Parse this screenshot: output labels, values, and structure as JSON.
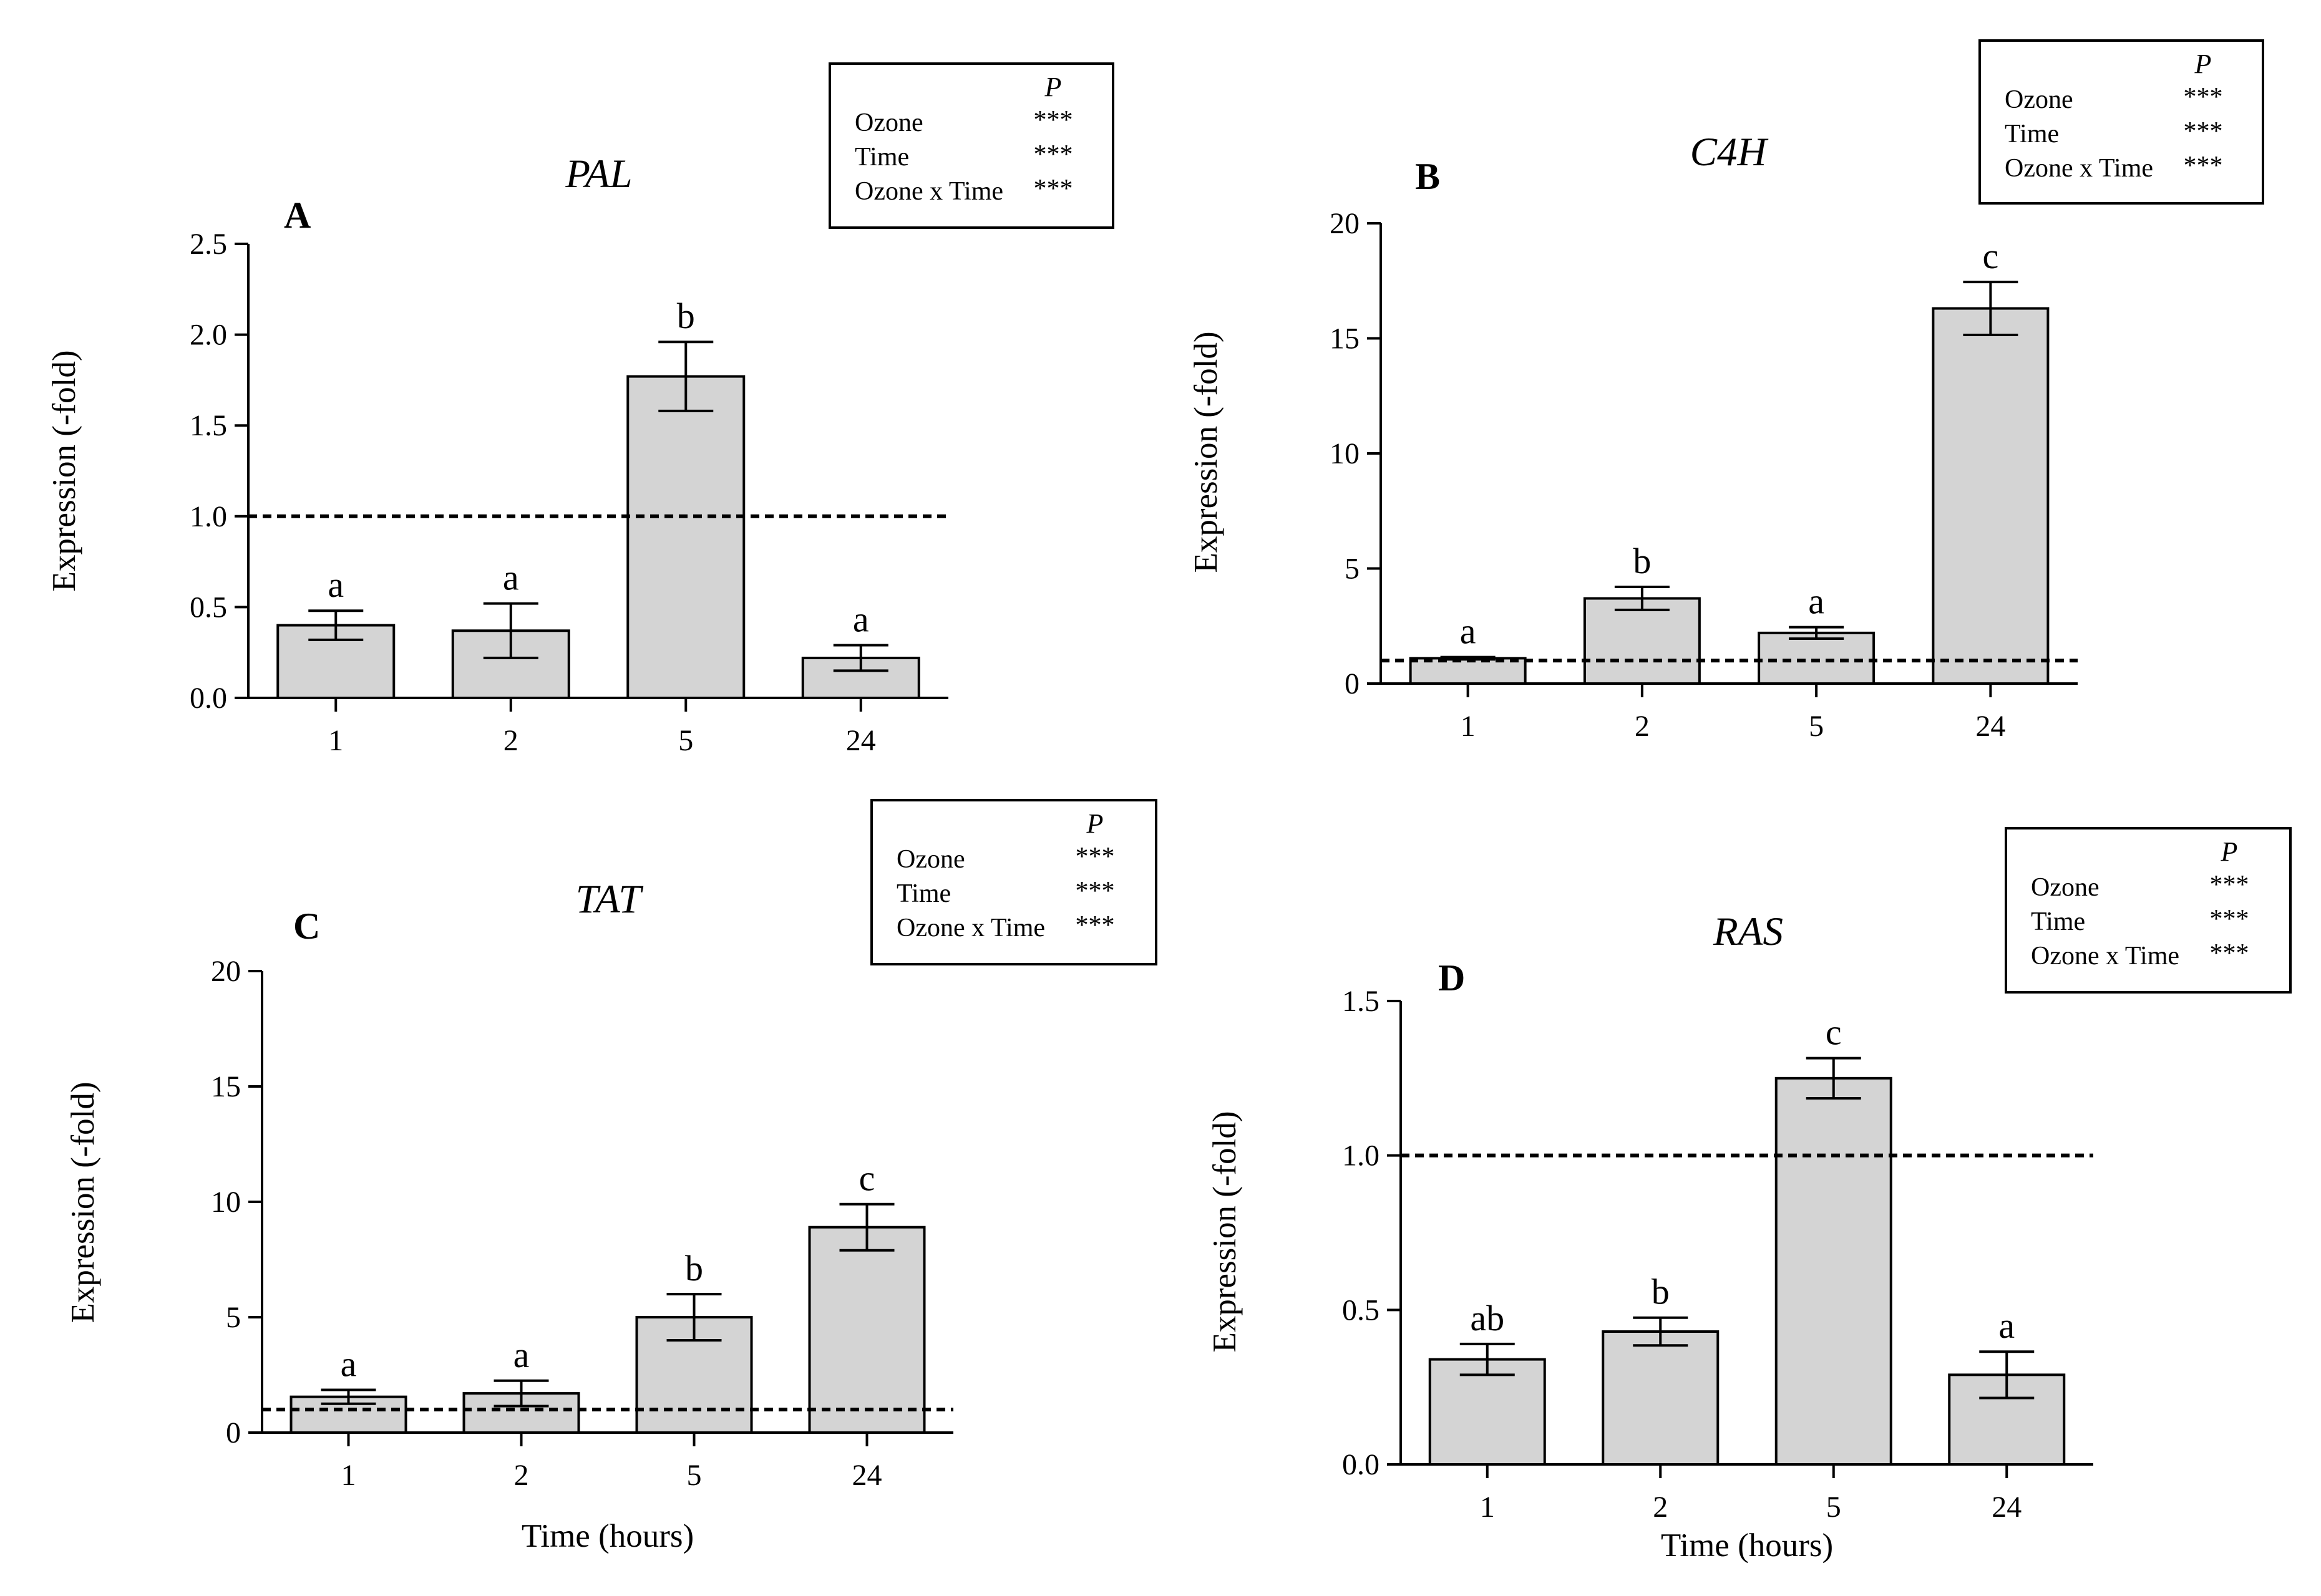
{
  "x_axis_label": "Time (hours)",
  "ylabel": "Expression (-fold)",
  "bar_fill": "#d4d4d4",
  "chart_data": [
    {
      "type": "bar",
      "panel": "A",
      "title": "PAL",
      "xlabel": "",
      "ylabel": "Expression (-fold)",
      "categories": [
        "1",
        "2",
        "5",
        "24"
      ],
      "values": [
        0.4,
        0.37,
        1.77,
        0.22
      ],
      "errors": [
        0.08,
        0.15,
        0.19,
        0.07
      ],
      "letters": [
        "a",
        "a",
        "b",
        "a"
      ],
      "ylim": [
        0,
        2.5
      ],
      "yticks": [
        "0.0",
        "0.5",
        "1.0",
        "1.5",
        "2.0",
        "2.5"
      ],
      "reference_line": 1.0,
      "stats": {
        "header": "P",
        "rows": [
          {
            "factor": "Ozone",
            "sig": "***"
          },
          {
            "factor": "Time",
            "sig": "***"
          },
          {
            "factor": "Ozone x Time",
            "sig": "***"
          }
        ]
      }
    },
    {
      "type": "bar",
      "panel": "B",
      "title": "C4H",
      "xlabel": "",
      "ylabel": "Expression (-fold)",
      "categories": [
        "1",
        "2",
        "5",
        "24"
      ],
      "values": [
        1.1,
        3.7,
        2.2,
        16.3
      ],
      "errors": [
        0.05,
        0.5,
        0.25,
        1.15
      ],
      "letters": [
        "a",
        "b",
        "a",
        "c"
      ],
      "ylim": [
        0,
        20
      ],
      "yticks": [
        "0",
        "5",
        "10",
        "15",
        "20"
      ],
      "reference_line": 1.0,
      "stats": {
        "header": "P",
        "rows": [
          {
            "factor": "Ozone",
            "sig": "***"
          },
          {
            "factor": "Time",
            "sig": "***"
          },
          {
            "factor": "Ozone x Time",
            "sig": "***"
          }
        ]
      }
    },
    {
      "type": "bar",
      "panel": "C",
      "title": "TAT",
      "xlabel": "Time (hours)",
      "ylabel": "Expression (-fold)",
      "categories": [
        "1",
        "2",
        "5",
        "24"
      ],
      "values": [
        1.55,
        1.7,
        5.0,
        8.9
      ],
      "errors": [
        0.3,
        0.55,
        1.0,
        1.0
      ],
      "letters": [
        "a",
        "a",
        "b",
        "c"
      ],
      "ylim": [
        0,
        20
      ],
      "yticks": [
        "0",
        "5",
        "10",
        "15",
        "20"
      ],
      "reference_line": 1.0,
      "stats": {
        "header": "P",
        "rows": [
          {
            "factor": "Ozone",
            "sig": "***"
          },
          {
            "factor": "Time",
            "sig": "***"
          },
          {
            "factor": "Ozone x Time",
            "sig": "***"
          }
        ]
      }
    },
    {
      "type": "bar",
      "panel": "D",
      "title": "RAS",
      "xlabel": "Time (hours)",
      "ylabel": "Expression (-fold)",
      "categories": [
        "1",
        "2",
        "5",
        "24"
      ],
      "values": [
        0.34,
        0.43,
        1.25,
        0.29
      ],
      "errors": [
        0.05,
        0.045,
        0.065,
        0.075
      ],
      "letters": [
        "ab",
        "b",
        "c",
        "a"
      ],
      "ylim": [
        0,
        1.5
      ],
      "yticks": [
        "0.0",
        "0.5",
        "1.0",
        "1.5"
      ],
      "reference_line": 1.0,
      "stats": {
        "header": "P",
        "rows": [
          {
            "factor": "Ozone",
            "sig": "***"
          },
          {
            "factor": "Time",
            "sig": "***"
          },
          {
            "factor": "Ozone x Time",
            "sig": "***"
          }
        ]
      }
    }
  ]
}
